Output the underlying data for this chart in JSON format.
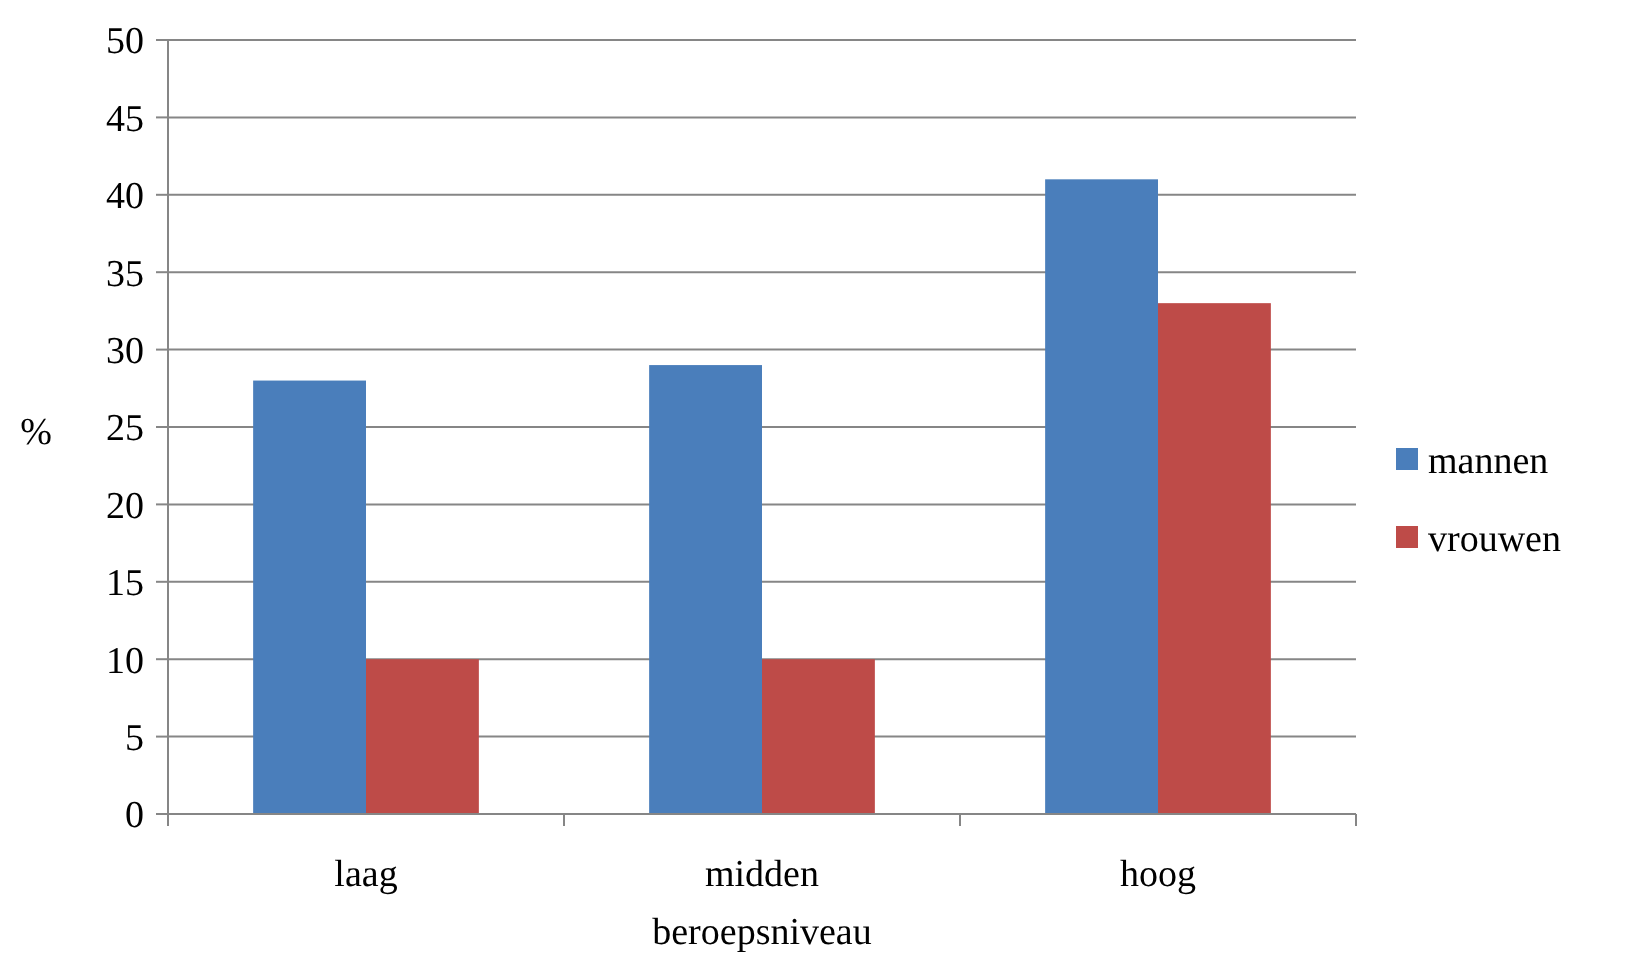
{
  "chart_data": {
    "type": "bar",
    "xlabel": "beroepsniveau",
    "ylabel": "%",
    "categories": [
      "laag",
      "midden",
      "hoog"
    ],
    "series": [
      {
        "name": "mannen",
        "color": "#4a7ebb",
        "values": [
          28,
          29,
          41
        ]
      },
      {
        "name": "vrouwen",
        "color": "#be4b48",
        "values": [
          10,
          10,
          33
        ]
      }
    ],
    "ylim": [
      0,
      50
    ],
    "yticks": [
      0,
      5,
      10,
      15,
      20,
      25,
      30,
      35,
      40,
      45,
      50
    ],
    "grid": "y",
    "legend": "right"
  }
}
